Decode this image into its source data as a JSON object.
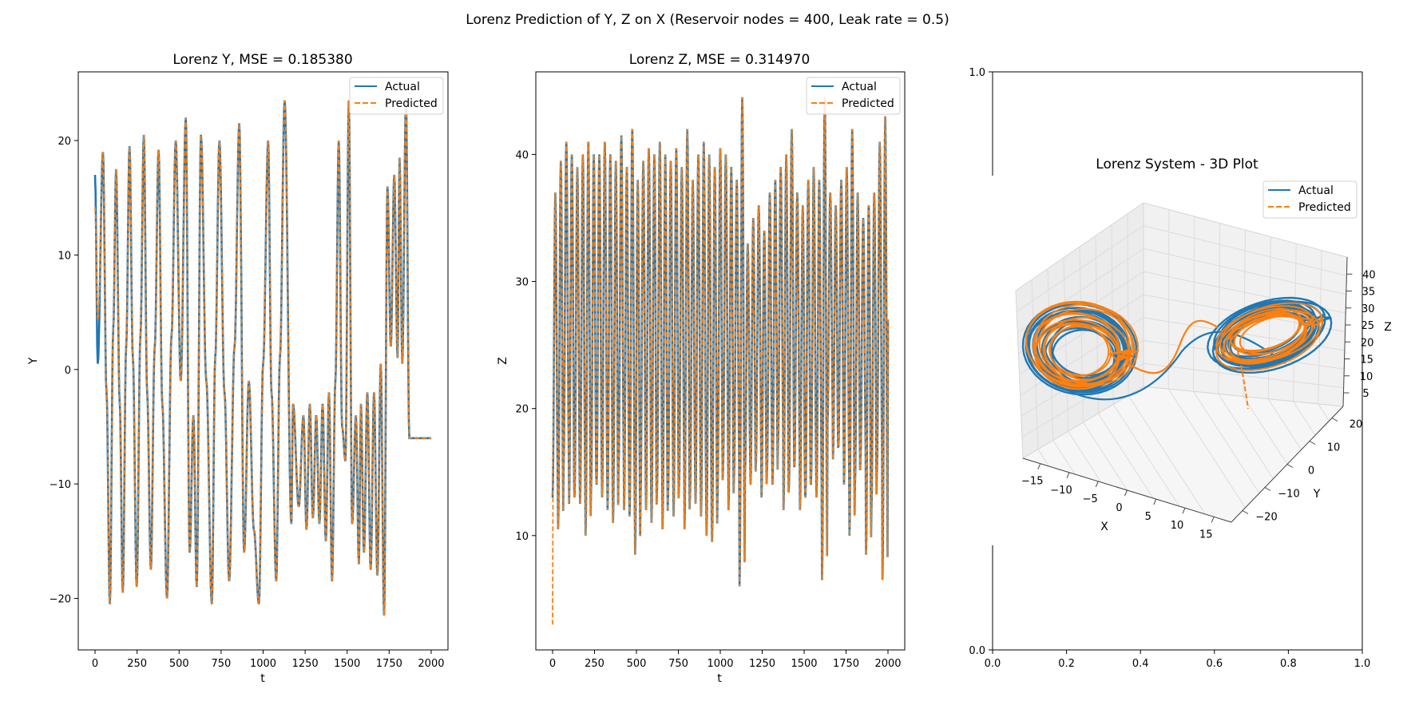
{
  "figure": {
    "suptitle": "Lorenz Prediction of Y, Z on X (Reservoir nodes = 400, Leak rate = 0.5)"
  },
  "colors": {
    "actual": "#1f77b4",
    "predicted": "#ff7f0e"
  },
  "chart_data": [
    {
      "type": "line",
      "title": "Lorenz Y, MSE = 0.185380",
      "xlabel": "t",
      "ylabel": "Y",
      "xlim": [
        -100,
        2100
      ],
      "ylim": [
        -24.5,
        26.0
      ],
      "xticks": [
        0,
        250,
        500,
        750,
        1000,
        1250,
        1500,
        1750,
        2000
      ],
      "yticks": [
        -20,
        -10,
        0,
        10,
        20
      ],
      "ytick_labels": [
        "−20",
        "−10",
        "0",
        "10",
        "20"
      ],
      "legend": {
        "placement": "upper right",
        "entries": [
          "Actual",
          "Predicted"
        ]
      },
      "series": [
        {
          "name": "Actual",
          "style": "solid"
        },
        {
          "name": "Predicted",
          "style": "dashed"
        }
      ],
      "peak_t": [
        0,
        16,
        47,
        68,
        88,
        108,
        125,
        147,
        165,
        185,
        205,
        225,
        248,
        270,
        290,
        310,
        332,
        355,
        378,
        400,
        428,
        455,
        480,
        510,
        540,
        563,
        585,
        605,
        630,
        662,
        695,
        715,
        740,
        770,
        798,
        830,
        858,
        887,
        915,
        945,
        975,
        1000,
        1030,
        1050,
        1078,
        1100,
        1128,
        1168,
        1178,
        1212,
        1240,
        1258,
        1278,
        1296,
        1316,
        1335,
        1354,
        1373,
        1392,
        1410,
        1430,
        1450,
        1470,
        1490,
        1510,
        1530,
        1552,
        1570,
        1582,
        1600,
        1620,
        1640,
        1660,
        1680,
        1700,
        1720,
        1740,
        1760,
        1780,
        1800,
        1812,
        1828,
        1850,
        1870,
        1890,
        1910,
        1930,
        1950,
        1972,
        1988,
        2000
      ],
      "peak_y": [
        17,
        0.5,
        19,
        -2,
        -20.5,
        3.5,
        17.5,
        -3,
        -19.5,
        2,
        19.5,
        1,
        -19,
        3,
        20.5,
        -2,
        -17.5,
        2,
        19.2,
        -3,
        -20,
        3,
        20,
        -1,
        22,
        -16,
        -4,
        -19,
        20.5,
        -1,
        -20.5,
        1,
        20,
        -2,
        -18.5,
        2,
        21.5,
        -16,
        -1,
        -14,
        -20.5,
        0.5,
        20,
        -2,
        -18.5,
        1,
        23.5,
        -13.5,
        -3,
        -12,
        -4,
        -14,
        -3,
        -13,
        -4,
        -13.5,
        -3,
        -15,
        -2,
        -18.5,
        -1,
        20,
        -5,
        -8,
        23.5,
        -13.5,
        -4,
        -17,
        -3,
        -16,
        -2,
        -17.5,
        -2,
        -18,
        0.5,
        -21.5,
        16,
        2,
        17,
        1,
        18.5,
        0.5,
        23.5,
        -6,
        -6,
        -6,
        -6,
        -6,
        -6,
        -6,
        -6
      ]
    },
    {
      "type": "line",
      "title": "Lorenz Z, MSE = 0.314970",
      "xlabel": "t",
      "ylabel": "Z",
      "xlim": [
        -100,
        2100
      ],
      "ylim": [
        1.0,
        46.5
      ],
      "xticks": [
        0,
        250,
        500,
        750,
        1000,
        1250,
        1500,
        1750,
        2000
      ],
      "yticks": [
        10,
        20,
        30,
        40
      ],
      "legend": {
        "placement": "upper right",
        "entries": [
          "Actual",
          "Predicted"
        ]
      },
      "series": [
        {
          "name": "Actual",
          "style": "solid"
        },
        {
          "name": "Predicted",
          "style": "dashed"
        }
      ],
      "oscillation_peaks_z": [
        37,
        39.5,
        41,
        40,
        39,
        40,
        41,
        40,
        40,
        41,
        40,
        39.5,
        41.5,
        39,
        42,
        38,
        39.5,
        40.5,
        40,
        41,
        40,
        39.5,
        40.5,
        39,
        42,
        38,
        40,
        41,
        40,
        39,
        40.5,
        40,
        39,
        38,
        44.5,
        33,
        35,
        36,
        34,
        37,
        38,
        39,
        40,
        42,
        37,
        36,
        38,
        39,
        38,
        44.5,
        37,
        36,
        38,
        39,
        42,
        37,
        35,
        36,
        37,
        41,
        43
      ],
      "oscillation_troughs_z": [
        13,
        10.5,
        15.5,
        12.5,
        13,
        12.5,
        10,
        13.5,
        14,
        13,
        12,
        11,
        15,
        12,
        11.5,
        8.5,
        13,
        12,
        11,
        13.5,
        10.5,
        13,
        11.5,
        14,
        10.5,
        13,
        12.5,
        11.5,
        10,
        9.5,
        13,
        15,
        12,
        14.5,
        6,
        15,
        14,
        16,
        13,
        15,
        14,
        17,
        12,
        14,
        15.5,
        12,
        13,
        14,
        13,
        6.5,
        19,
        16,
        17,
        14,
        10,
        14,
        16,
        8.5,
        12,
        15,
        6.5
      ],
      "predicted_start_z": 3
    },
    {
      "type": "scatter",
      "title": "Lorenz System - 3D Plot",
      "xlabel": "X",
      "ylabel": "Y",
      "zlabel": "Z",
      "xticks": [
        -15,
        -10,
        -5,
        0,
        5,
        10,
        15
      ],
      "xtick_labels": [
        "−15",
        "−10",
        "−5",
        "0",
        "5",
        "10",
        "15"
      ],
      "yticks": [
        -20,
        -10,
        0,
        10,
        20
      ],
      "ytick_labels": [
        "−20",
        "−10",
        "0",
        "10",
        "20"
      ],
      "zticks": [
        5,
        10,
        15,
        20,
        25,
        30,
        35,
        40
      ],
      "legend": {
        "placement": "upper right",
        "entries": [
          "Actual",
          "Predicted"
        ]
      },
      "series": [
        {
          "name": "Actual",
          "style": "solid"
        },
        {
          "name": "Predicted",
          "style": "dashed"
        }
      ],
      "background_axes": {
        "xlim": [
          0,
          1
        ],
        "ylim": [
          0,
          1
        ],
        "xticks": [
          "0.0",
          "0.2",
          "0.4",
          "0.6",
          "0.8",
          "1.0"
        ],
        "yticks": [
          "0.0",
          "0.2",
          "0.4",
          "0.6",
          "0.8",
          "1.0"
        ]
      }
    }
  ]
}
